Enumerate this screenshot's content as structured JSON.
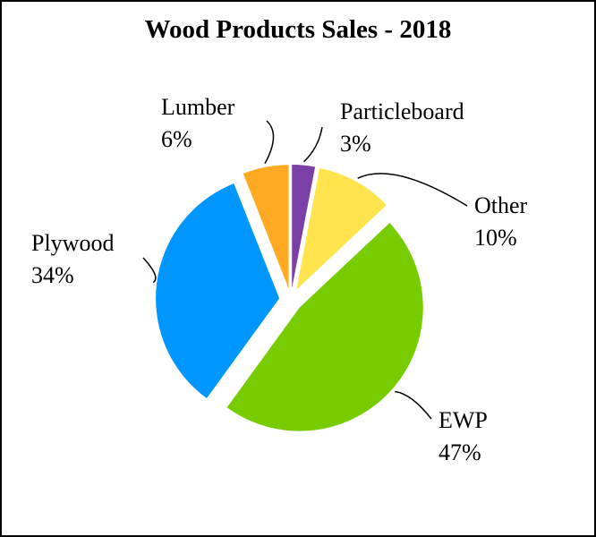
{
  "chart_data": {
    "type": "pie",
    "title": "Wood Products Sales - 2018",
    "categories": [
      "Particleboard",
      "Other",
      "EWP",
      "Plywood",
      "Lumber"
    ],
    "values": [
      3,
      10,
      47,
      34,
      6
    ],
    "value_labels": [
      "3%",
      "10%",
      "47%",
      "34%",
      "6%"
    ],
    "colors": [
      "#7b3fa8",
      "#ffe44d",
      "#77cc00",
      "#0096ff",
      "#ffaa22"
    ]
  }
}
